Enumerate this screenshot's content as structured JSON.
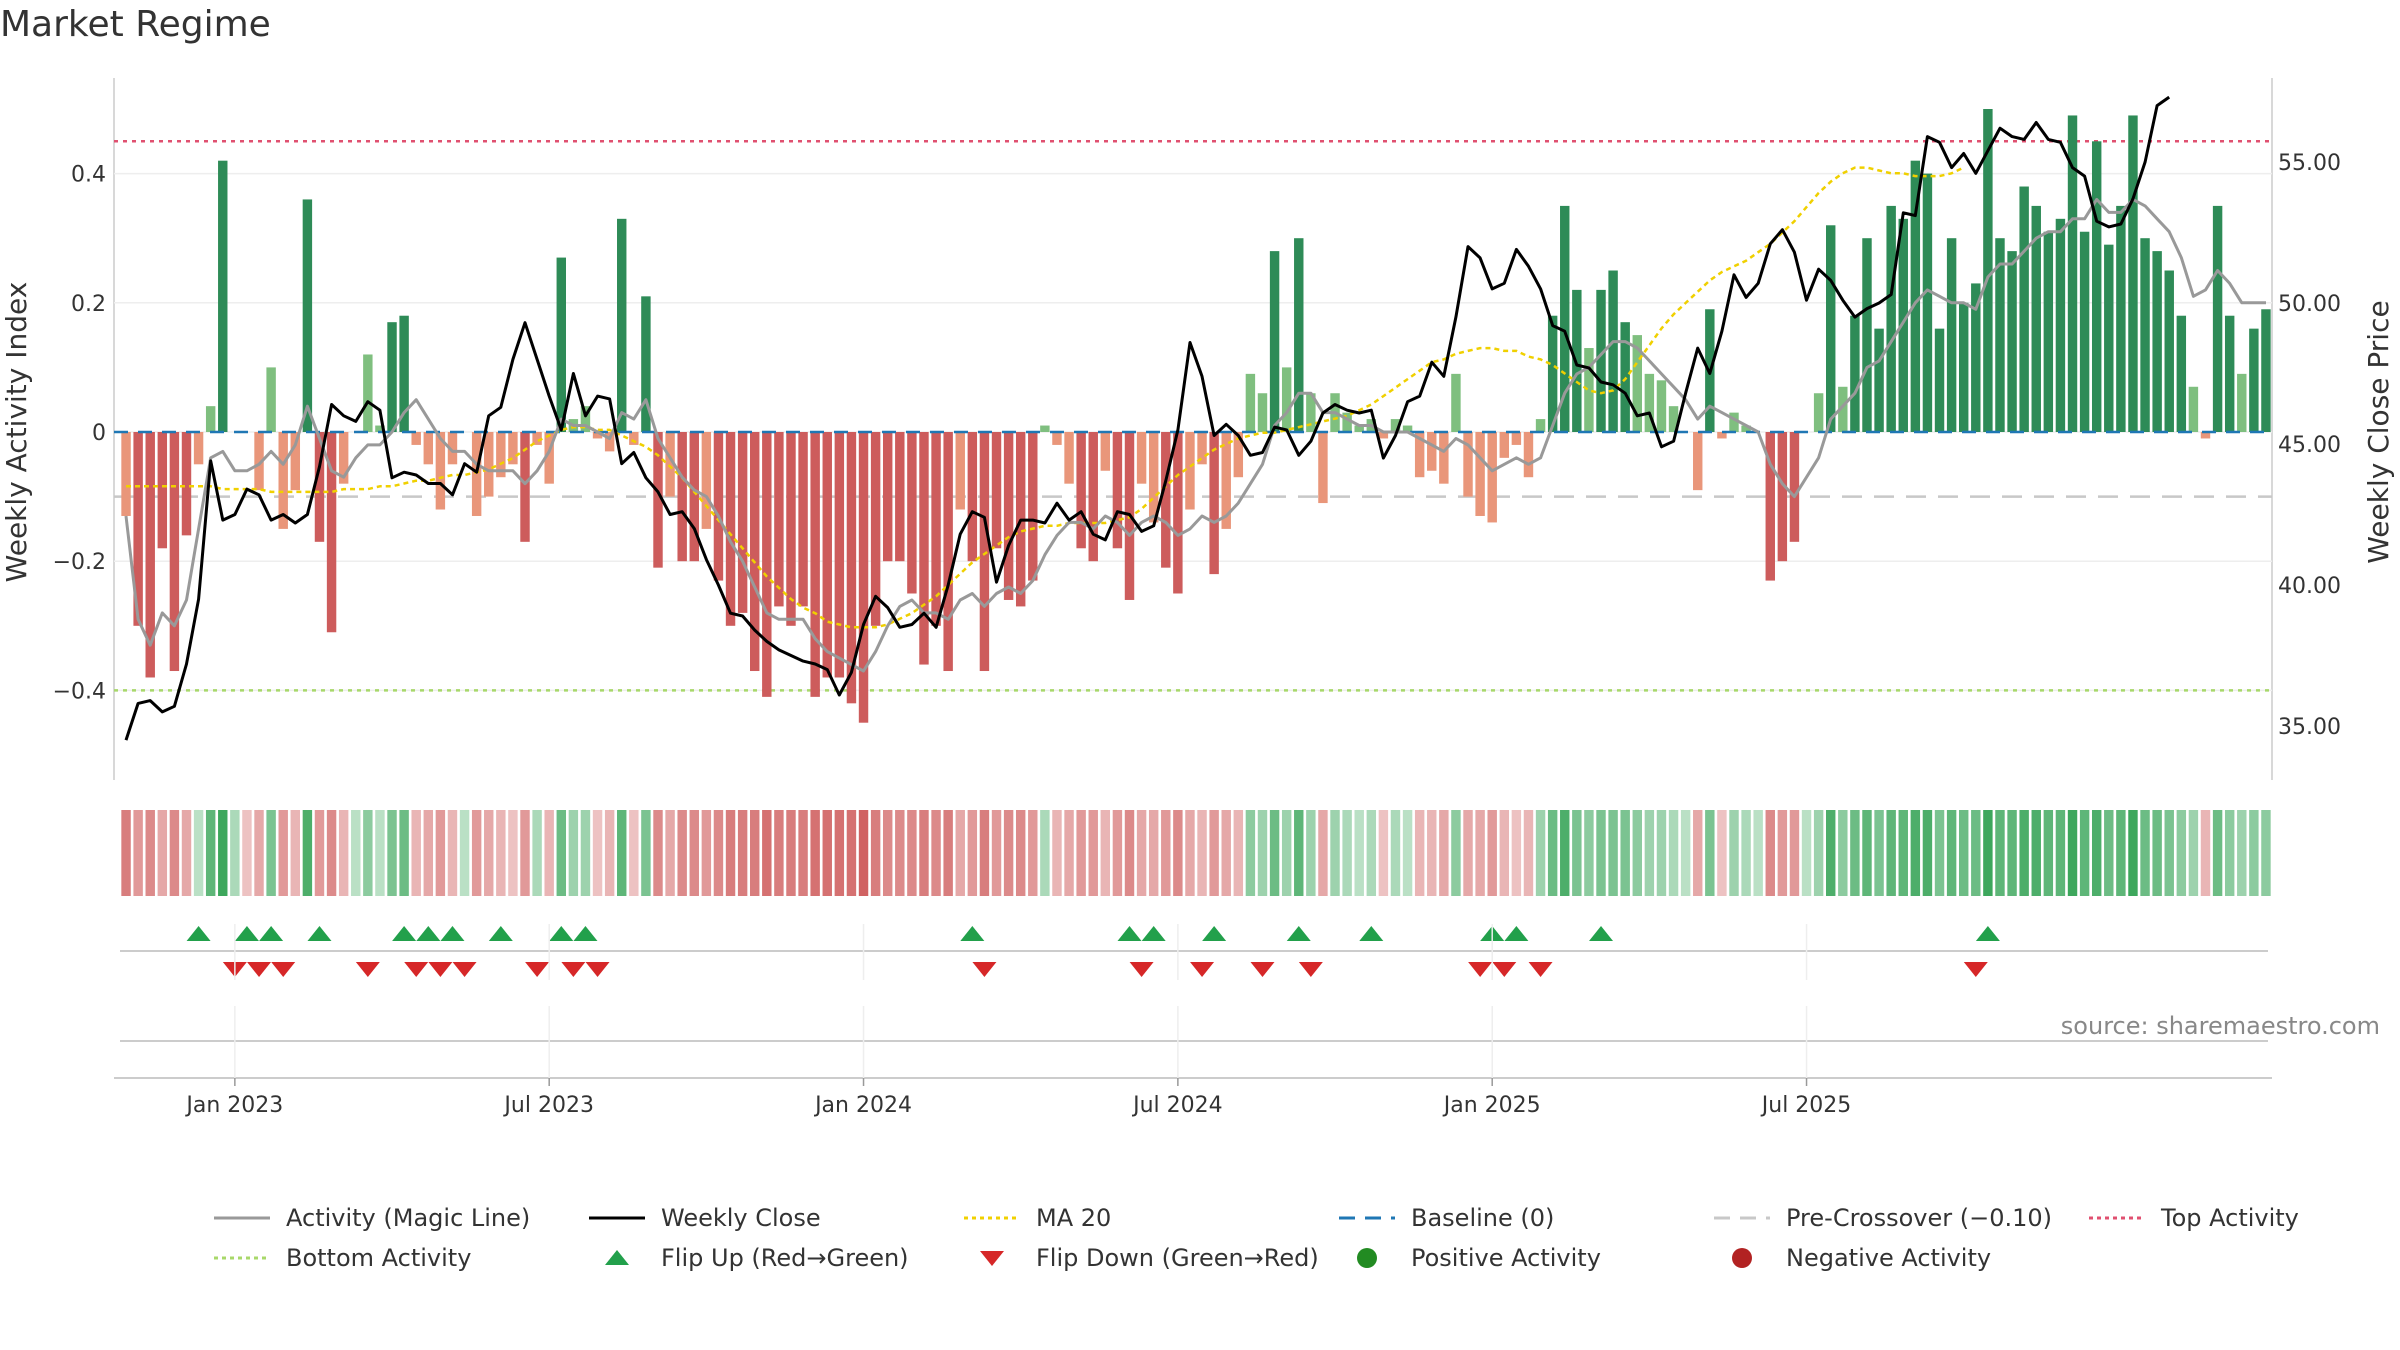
{
  "title": "Market Regime",
  "source": "source: sharemaestro.com",
  "colors": {
    "strong_green": "#2e8b57",
    "light_green": "#7fbf7f",
    "strong_red": "#cd5c5c",
    "light_red": "#e9967a",
    "activity_line": "#999999",
    "close_line": "#000000",
    "ma_line": "#f0d000",
    "baseline": "#1f77b4",
    "pre_crossover": "#c8c8c8",
    "top_activity": "#e05070",
    "bottom_activity": "#a8d86a",
    "flip_up": "#22a04b",
    "flip_down": "#d62728",
    "positive_dot": "#228b22",
    "negative_dot": "#b22222"
  },
  "legend": [
    {
      "label": "Activity (Magic Line)",
      "kind": "line",
      "color": "#999999"
    },
    {
      "label": "Weekly Close",
      "kind": "line",
      "color": "#000000"
    },
    {
      "label": "MA 20",
      "kind": "dotted",
      "color": "#f0d000"
    },
    {
      "label": "Baseline (0)",
      "kind": "dashed",
      "color": "#1f77b4"
    },
    {
      "label": "Pre-Crossover (−0.10)",
      "kind": "dashed",
      "color": "#c8c8c8"
    },
    {
      "label": "Top Activity",
      "kind": "dotted",
      "color": "#e05070"
    },
    {
      "label": "Bottom Activity",
      "kind": "dotted",
      "color": "#a8d86a"
    },
    {
      "label": "Flip Up (Red→Green)",
      "kind": "tri-up",
      "color": "#22a04b"
    },
    {
      "label": "Flip Down (Green→Red)",
      "kind": "tri-down",
      "color": "#d62728"
    },
    {
      "label": "Positive Activity",
      "kind": "dot",
      "color": "#228b22"
    },
    {
      "label": "Negative Activity",
      "kind": "dot",
      "color": "#b22222"
    }
  ],
  "chart_data": {
    "type": "bar",
    "x_label_dates": [
      "Jan 2023",
      "Jul 2023",
      "Jan 2024",
      "Jul 2024",
      "Jan 2025",
      "Jul 2025"
    ],
    "x_range_weeks": [
      0,
      157
    ],
    "left_axis": {
      "label": "Weekly Activity Index",
      "ticks": [
        "0.4",
        "0.2",
        "0",
        "−0.2",
        "−0.4"
      ],
      "tick_values": [
        0.4,
        0.2,
        0,
        -0.2,
        -0.4
      ],
      "range": [
        -0.54,
        0.54
      ]
    },
    "right_axis": {
      "label": "Weekly Close Price",
      "ticks": [
        "55.00",
        "50.00",
        "45.00",
        "40.00",
        "35.00"
      ],
      "tick_values": [
        55,
        50,
        45,
        40,
        35
      ],
      "range": [
        33.4,
        58.8
      ]
    },
    "reference_lines": {
      "top_activity": 0.45,
      "bottom_activity": -0.4,
      "baseline": 0,
      "pre_crossover": -0.1
    },
    "week_start": 0,
    "activity_bars": [
      -0.13,
      -0.3,
      -0.38,
      -0.18,
      -0.37,
      -0.16,
      -0.05,
      0.04,
      0.42,
      0.0,
      0.0,
      -0.09,
      0.1,
      -0.15,
      -0.09,
      0.36,
      -0.17,
      -0.31,
      -0.08,
      0.0,
      0.12,
      0.01,
      0.17,
      0.18,
      -0.02,
      -0.05,
      -0.12,
      -0.05,
      0.0,
      -0.13,
      -0.1,
      -0.07,
      -0.05,
      -0.17,
      -0.02,
      -0.08,
      0.27,
      0.02,
      0.04,
      -0.01,
      -0.03,
      0.33,
      -0.02,
      0.21,
      -0.21,
      -0.1,
      -0.2,
      -0.2,
      -0.15,
      -0.23,
      -0.3,
      -0.28,
      -0.37,
      -0.41,
      -0.27,
      -0.3,
      -0.27,
      -0.41,
      -0.38,
      -0.38,
      -0.42,
      -0.45,
      -0.3,
      -0.2,
      -0.2,
      -0.25,
      -0.36,
      -0.3,
      -0.37,
      -0.12,
      -0.2,
      -0.37,
      -0.18,
      -0.26,
      -0.27,
      -0.23,
      0.01,
      -0.02,
      -0.08,
      -0.18,
      -0.2,
      -0.06,
      -0.18,
      -0.26,
      -0.08,
      -0.14,
      -0.21,
      -0.25,
      -0.12,
      -0.05,
      -0.22,
      -0.15,
      -0.07,
      0.09,
      0.06,
      0.28,
      0.1,
      0.3,
      0.06,
      -0.11,
      0.06,
      0.03,
      0.01,
      0.02,
      -0.01,
      0.02,
      0.01,
      -0.07,
      -0.06,
      -0.08,
      0.09,
      -0.1,
      -0.13,
      -0.14,
      -0.04,
      -0.02,
      -0.07,
      0.02,
      0.18,
      0.35,
      0.22,
      0.13,
      0.22,
      0.25,
      0.17,
      0.15,
      0.09,
      0.08,
      0.04,
      0.0,
      -0.09,
      0.19,
      -0.01,
      0.03,
      0.01,
      0.0,
      -0.23,
      -0.2,
      -0.17,
      0.0,
      0.06,
      0.32,
      0.07,
      0.18,
      0.3,
      0.16,
      0.35,
      0.33,
      0.42,
      0.4,
      0.16,
      0.3,
      0.2,
      0.23,
      0.5,
      0.3,
      0.28,
      0.38,
      0.35,
      0.31,
      0.33,
      0.49,
      0.31,
      0.45,
      0.29,
      0.35,
      0.49,
      0.3,
      0.28,
      0.25,
      0.18,
      0.07,
      -0.01,
      0.35,
      0.18,
      0.09,
      0.16,
      0.19
    ],
    "activity_line": [
      -0.13,
      -0.29,
      -0.33,
      -0.28,
      -0.3,
      -0.26,
      -0.15,
      -0.04,
      -0.03,
      -0.06,
      -0.06,
      -0.05,
      -0.03,
      -0.05,
      -0.02,
      0.04,
      -0.01,
      -0.06,
      -0.07,
      -0.04,
      -0.02,
      -0.02,
      0.0,
      0.03,
      0.05,
      0.02,
      -0.01,
      -0.03,
      -0.03,
      -0.05,
      -0.06,
      -0.06,
      -0.06,
      -0.08,
      -0.06,
      -0.03,
      0.02,
      0.01,
      0.01,
      0.0,
      -0.01,
      0.03,
      0.02,
      0.05,
      -0.01,
      -0.04,
      -0.07,
      -0.09,
      -0.1,
      -0.13,
      -0.17,
      -0.2,
      -0.24,
      -0.28,
      -0.29,
      -0.29,
      -0.29,
      -0.32,
      -0.34,
      -0.35,
      -0.36,
      -0.37,
      -0.34,
      -0.3,
      -0.27,
      -0.26,
      -0.28,
      -0.28,
      -0.29,
      -0.26,
      -0.25,
      -0.27,
      -0.25,
      -0.24,
      -0.25,
      -0.23,
      -0.19,
      -0.16,
      -0.14,
      -0.14,
      -0.15,
      -0.13,
      -0.14,
      -0.16,
      -0.14,
      -0.13,
      -0.14,
      -0.16,
      -0.15,
      -0.13,
      -0.14,
      -0.13,
      -0.11,
      -0.08,
      -0.05,
      0.01,
      0.03,
      0.06,
      0.06,
      0.03,
      0.03,
      0.02,
      0.01,
      0.01,
      0.0,
      0.0,
      0.0,
      -0.01,
      -0.02,
      -0.03,
      -0.01,
      -0.02,
      -0.04,
      -0.06,
      -0.05,
      -0.04,
      -0.05,
      -0.04,
      0.01,
      0.06,
      0.09,
      0.1,
      0.12,
      0.14,
      0.14,
      0.13,
      0.11,
      0.09,
      0.07,
      0.05,
      0.02,
      0.04,
      0.03,
      0.02,
      0.01,
      0.0,
      -0.05,
      -0.08,
      -0.1,
      -0.07,
      -0.04,
      0.02,
      0.04,
      0.06,
      0.1,
      0.11,
      0.14,
      0.17,
      0.2,
      0.22,
      0.21,
      0.2,
      0.2,
      0.19,
      0.24,
      0.26,
      0.26,
      0.28,
      0.3,
      0.31,
      0.31,
      0.33,
      0.33,
      0.36,
      0.34,
      0.34,
      0.36,
      0.35,
      0.33,
      0.31,
      0.27,
      0.21,
      0.22,
      0.25,
      0.23,
      0.2,
      0.2,
      0.2
    ],
    "weekly_close": [
      34.5,
      35.8,
      35.9,
      35.5,
      35.7,
      37.2,
      39.5,
      44.4,
      42.3,
      42.5,
      43.4,
      43.2,
      42.3,
      42.5,
      42.2,
      42.5,
      44.2,
      46.4,
      46.0,
      45.8,
      46.5,
      46.2,
      43.8,
      44.0,
      43.9,
      43.6,
      43.6,
      43.2,
      44.3,
      44.0,
      46.0,
      46.3,
      48.0,
      49.3,
      48.0,
      46.7,
      45.5,
      47.5,
      46.0,
      46.7,
      46.6,
      44.3,
      44.7,
      43.8,
      43.3,
      42.5,
      42.6,
      42.0,
      40.9,
      40.0,
      39.0,
      38.9,
      38.4,
      38.0,
      37.7,
      37.5,
      37.3,
      37.2,
      37.0,
      36.1,
      36.9,
      38.6,
      39.6,
      39.2,
      38.5,
      38.6,
      39.0,
      38.5,
      40.0,
      41.8,
      42.6,
      42.4,
      40.1,
      41.4,
      42.3,
      42.3,
      42.2,
      42.9,
      42.3,
      42.6,
      41.8,
      41.6,
      42.6,
      42.5,
      41.9,
      42.1,
      43.7,
      45.5,
      48.6,
      47.4,
      45.3,
      45.7,
      45.3,
      44.6,
      44.7,
      45.6,
      45.5,
      44.6,
      45.1,
      46.1,
      46.4,
      46.2,
      46.1,
      46.2,
      44.5,
      45.3,
      46.5,
      46.7,
      47.9,
      47.4,
      49.5,
      52.0,
      51.6,
      50.5,
      50.7,
      51.9,
      51.3,
      50.5,
      49.2,
      49.0,
      47.8,
      47.7,
      47.2,
      47.1,
      46.8,
      46.0,
      46.1,
      44.9,
      45.1,
      46.8,
      48.4,
      47.5,
      49.0,
      51.0,
      50.2,
      50.7,
      52.1,
      52.6,
      51.8,
      50.1,
      51.2,
      50.8,
      50.1,
      49.5,
      49.8,
      50.0,
      50.3,
      53.2,
      53.1,
      55.9,
      55.7,
      54.8,
      55.3,
      54.6,
      55.4,
      56.2,
      55.9,
      55.8,
      56.4,
      55.8,
      55.7,
      54.8,
      54.5,
      52.9,
      52.7,
      52.8,
      53.7,
      55.0,
      57.0,
      57.3
    ],
    "ma20": [
      43.5,
      43.5,
      43.5,
      43.5,
      43.5,
      43.5,
      43.5,
      43.5,
      43.4,
      43.4,
      43.4,
      43.4,
      43.3,
      43.3,
      43.3,
      43.3,
      43.3,
      43.3,
      43.4,
      43.4,
      43.4,
      43.5,
      43.5,
      43.6,
      43.7,
      43.7,
      43.8,
      43.9,
      43.9,
      44.0,
      44.1,
      44.3,
      44.5,
      44.8,
      45.1,
      45.3,
      45.5,
      45.6,
      45.6,
      45.5,
      45.5,
      45.3,
      45.1,
      44.9,
      44.6,
      44.2,
      43.8,
      43.3,
      42.8,
      42.3,
      41.8,
      41.3,
      40.8,
      40.3,
      39.9,
      39.5,
      39.2,
      39.0,
      38.7,
      38.6,
      38.5,
      38.5,
      38.5,
      38.6,
      38.8,
      39.0,
      39.3,
      39.6,
      40.0,
      40.4,
      40.8,
      41.1,
      41.4,
      41.7,
      41.9,
      42.0,
      42.1,
      42.1,
      42.2,
      42.2,
      42.2,
      42.2,
      42.3,
      42.4,
      42.7,
      43.1,
      43.5,
      43.9,
      44.2,
      44.5,
      44.8,
      45.0,
      45.2,
      45.3,
      45.4,
      45.4,
      45.5,
      45.6,
      45.7,
      45.8,
      45.9,
      46.0,
      46.2,
      46.4,
      46.7,
      47.0,
      47.3,
      47.6,
      47.9,
      48.0,
      48.2,
      48.3,
      48.4,
      48.4,
      48.3,
      48.3,
      48.1,
      48.0,
      47.8,
      47.5,
      47.2,
      46.9,
      46.8,
      46.9,
      47.3,
      47.9,
      48.5,
      49.1,
      49.6,
      50.0,
      50.4,
      50.8,
      51.1,
      51.3,
      51.5,
      51.8,
      52.1,
      52.5,
      52.9,
      53.4,
      53.9,
      54.3,
      54.6,
      54.8,
      54.8,
      54.7,
      54.6,
      54.6,
      54.5,
      54.5,
      54.5,
      54.6,
      54.8
    ],
    "flip_up_weeks": [
      6,
      10,
      12,
      16,
      23,
      25,
      27,
      31,
      36,
      38,
      70,
      83,
      85,
      90,
      97,
      103,
      113,
      115,
      122,
      154
    ],
    "flip_down_weeks": [
      9,
      11,
      13,
      20,
      24,
      26,
      28,
      34,
      37,
      39,
      71,
      84,
      89,
      94,
      98,
      112,
      114,
      117,
      153
    ],
    "strip_strength": [
      -0.6,
      -0.4,
      -0.5,
      -0.3,
      -0.5,
      -0.3,
      0.1,
      0.7,
      0.9,
      0.2,
      -0.1,
      -0.3,
      0.5,
      -0.4,
      -0.2,
      0.8,
      -0.4,
      -0.5,
      -0.2,
      0.1,
      0.4,
      0.1,
      0.5,
      0.6,
      -0.2,
      -0.3,
      -0.4,
      -0.2,
      0.1,
      -0.4,
      -0.3,
      -0.2,
      -0.1,
      -0.4,
      0.2,
      -0.2,
      0.6,
      0.3,
      0.3,
      -0.1,
      -0.2,
      0.7,
      -0.1,
      0.5,
      -0.5,
      -0.3,
      -0.5,
      -0.5,
      -0.4,
      -0.5,
      -0.6,
      -0.6,
      -0.6,
      -0.7,
      -0.6,
      -0.6,
      -0.6,
      -0.7,
      -0.7,
      -0.7,
      -0.7,
      -0.8,
      -0.6,
      -0.5,
      -0.5,
      -0.5,
      -0.6,
      -0.5,
      -0.6,
      -0.3,
      -0.4,
      -0.6,
      -0.4,
      -0.5,
      -0.5,
      -0.4,
      0.2,
      -0.2,
      -0.3,
      -0.4,
      -0.4,
      -0.2,
      -0.4,
      -0.5,
      -0.3,
      -0.3,
      -0.4,
      -0.5,
      -0.3,
      -0.2,
      -0.4,
      -0.3,
      -0.2,
      0.4,
      0.3,
      0.6,
      0.3,
      0.7,
      0.3,
      -0.3,
      0.3,
      0.2,
      0.1,
      0.2,
      -0.1,
      0.2,
      0.1,
      -0.2,
      -0.2,
      -0.3,
      0.4,
      -0.3,
      -0.3,
      -0.4,
      -0.2,
      -0.1,
      -0.2,
      0.3,
      0.6,
      0.8,
      0.5,
      0.4,
      0.5,
      0.5,
      0.5,
      0.4,
      0.3,
      0.3,
      0.2,
      0.1,
      -0.3,
      0.5,
      -0.1,
      0.3,
      0.2,
      0.1,
      -0.5,
      -0.4,
      -0.4,
      0.1,
      0.3,
      0.8,
      0.4,
      0.6,
      0.7,
      0.5,
      0.7,
      0.7,
      0.8,
      0.8,
      0.5,
      0.7,
      0.6,
      0.6,
      0.9,
      0.7,
      0.7,
      0.8,
      0.8,
      0.7,
      0.7,
      0.9,
      0.7,
      0.8,
      0.6,
      0.7,
      0.9,
      0.6,
      0.6,
      0.5,
      0.4,
      0.3,
      -0.2,
      0.6,
      0.4,
      0.3,
      0.4,
      0.4
    ]
  }
}
